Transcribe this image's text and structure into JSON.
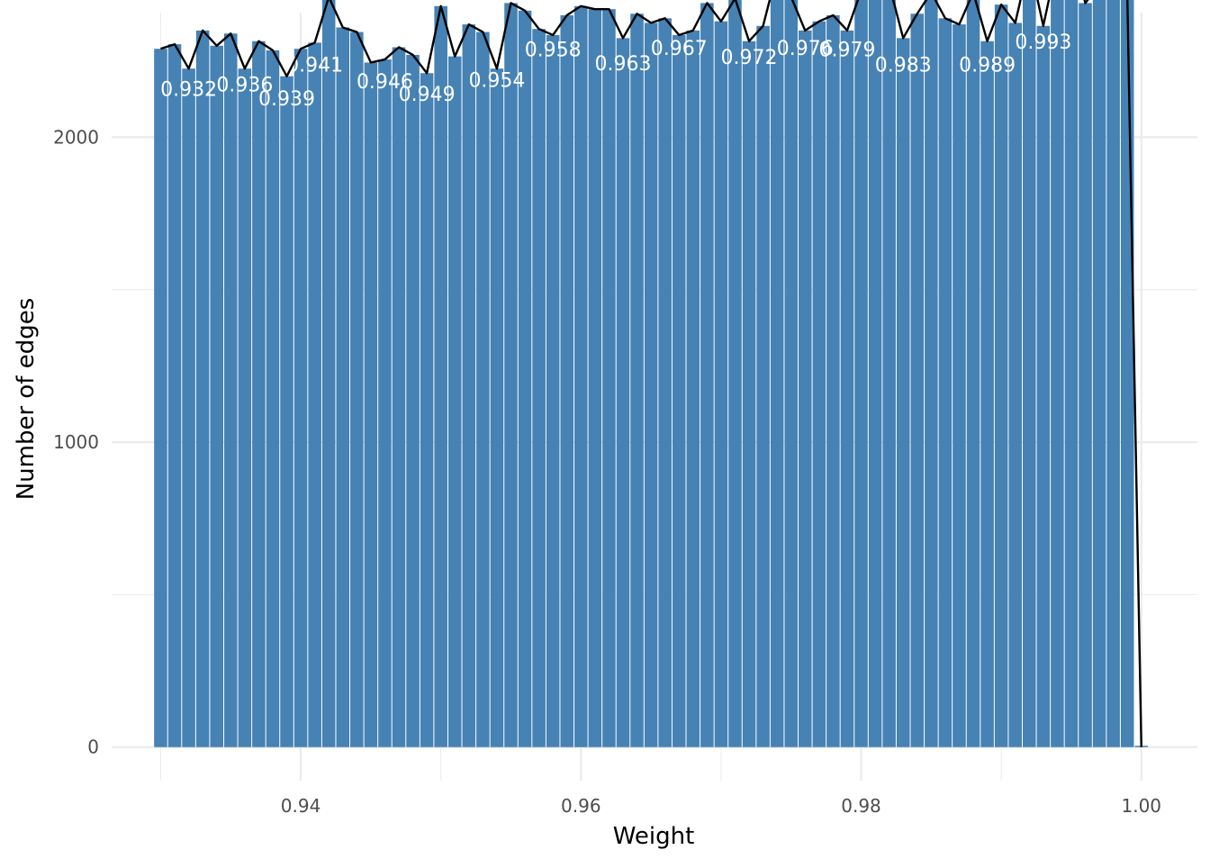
{
  "chart_data": {
    "type": "bar",
    "title": "",
    "xlabel": "Weight",
    "ylabel": "Number of edges",
    "xlim": [
      0.9265,
      1.004
    ],
    "ylim": [
      -110,
      2450
    ],
    "bin_width": 0.001,
    "x_ticks": [
      0.94,
      0.96,
      0.98,
      1.0
    ],
    "x_tick_labels": [
      "0.94",
      "0.96",
      "0.98",
      "1.00"
    ],
    "y_ticks": [
      0,
      1000,
      2000
    ],
    "y_tick_labels": [
      "0",
      "1000",
      "2000"
    ],
    "x_minor_ticks": [
      0.93,
      0.95,
      0.97,
      0.99
    ],
    "y_minor_ticks": [
      500,
      1500,
      2500
    ],
    "grid": true,
    "legend": "none",
    "bar_color": "#4682b4",
    "line_color": "#000000",
    "background": "#ffffff",
    "grid_color": "#ebebeb",
    "x": [
      0.93,
      0.931,
      0.932,
      0.933,
      0.934,
      0.935,
      0.936,
      0.937,
      0.938,
      0.939,
      0.94,
      0.941,
      0.942,
      0.943,
      0.944,
      0.945,
      0.946,
      0.947,
      0.948,
      0.949,
      0.95,
      0.951,
      0.952,
      0.953,
      0.954,
      0.955,
      0.956,
      0.957,
      0.958,
      0.959,
      0.96,
      0.961,
      0.962,
      0.963,
      0.964,
      0.965,
      0.966,
      0.967,
      0.968,
      0.969,
      0.97,
      0.971,
      0.972,
      0.973,
      0.974,
      0.975,
      0.976,
      0.977,
      0.978,
      0.979,
      0.98,
      0.981,
      0.982,
      0.983,
      0.984,
      0.985,
      0.986,
      0.987,
      0.988,
      0.989,
      0.99,
      0.991,
      0.992,
      0.993,
      0.994,
      0.995,
      0.996,
      0.997,
      0.998,
      0.999,
      1.0
    ],
    "values": [
      2290,
      2305,
      2225,
      2350,
      2300,
      2340,
      2225,
      2315,
      2285,
      2200,
      2290,
      2310,
      2460,
      2360,
      2345,
      2245,
      2255,
      2295,
      2270,
      2210,
      2430,
      2265,
      2370,
      2345,
      2225,
      2440,
      2415,
      2355,
      2335,
      2400,
      2430,
      2420,
      2420,
      2325,
      2405,
      2375,
      2390,
      2335,
      2350,
      2440,
      2380,
      2455,
      2315,
      2365,
      2545,
      2460,
      2350,
      2380,
      2400,
      2350,
      2480,
      2470,
      2500,
      2325,
      2405,
      2475,
      2390,
      2370,
      2475,
      2315,
      2435,
      2375,
      2575,
      2365,
      2580,
      2610,
      2440,
      2500,
      2460,
      2460,
      0
    ],
    "labels": [
      {
        "text": "0.932",
        "x": 0.932,
        "y": 2135
      },
      {
        "text": "0.936",
        "x": 0.936,
        "y": 2150
      },
      {
        "text": "0.939",
        "x": 0.939,
        "y": 2105
      },
      {
        "text": "0.941",
        "x": 0.941,
        "y": 2215
      },
      {
        "text": "0.946",
        "x": 0.946,
        "y": 2160
      },
      {
        "text": "0.949",
        "x": 0.949,
        "y": 2120
      },
      {
        "text": "0.954",
        "x": 0.954,
        "y": 2165
      },
      {
        "text": "0.958",
        "x": 0.958,
        "y": 2265
      },
      {
        "text": "0.963",
        "x": 0.963,
        "y": 2220
      },
      {
        "text": "0.967",
        "x": 0.967,
        "y": 2270
      },
      {
        "text": "0.972",
        "x": 0.972,
        "y": 2240
      },
      {
        "text": "0.976",
        "x": 0.976,
        "y": 2270
      },
      {
        "text": "0.979",
        "x": 0.979,
        "y": 2265
      },
      {
        "text": "0.983",
        "x": 0.983,
        "y": 2215
      },
      {
        "text": "0.989",
        "x": 0.989,
        "y": 2215
      },
      {
        "text": "0.993",
        "x": 0.993,
        "y": 2290
      }
    ]
  }
}
